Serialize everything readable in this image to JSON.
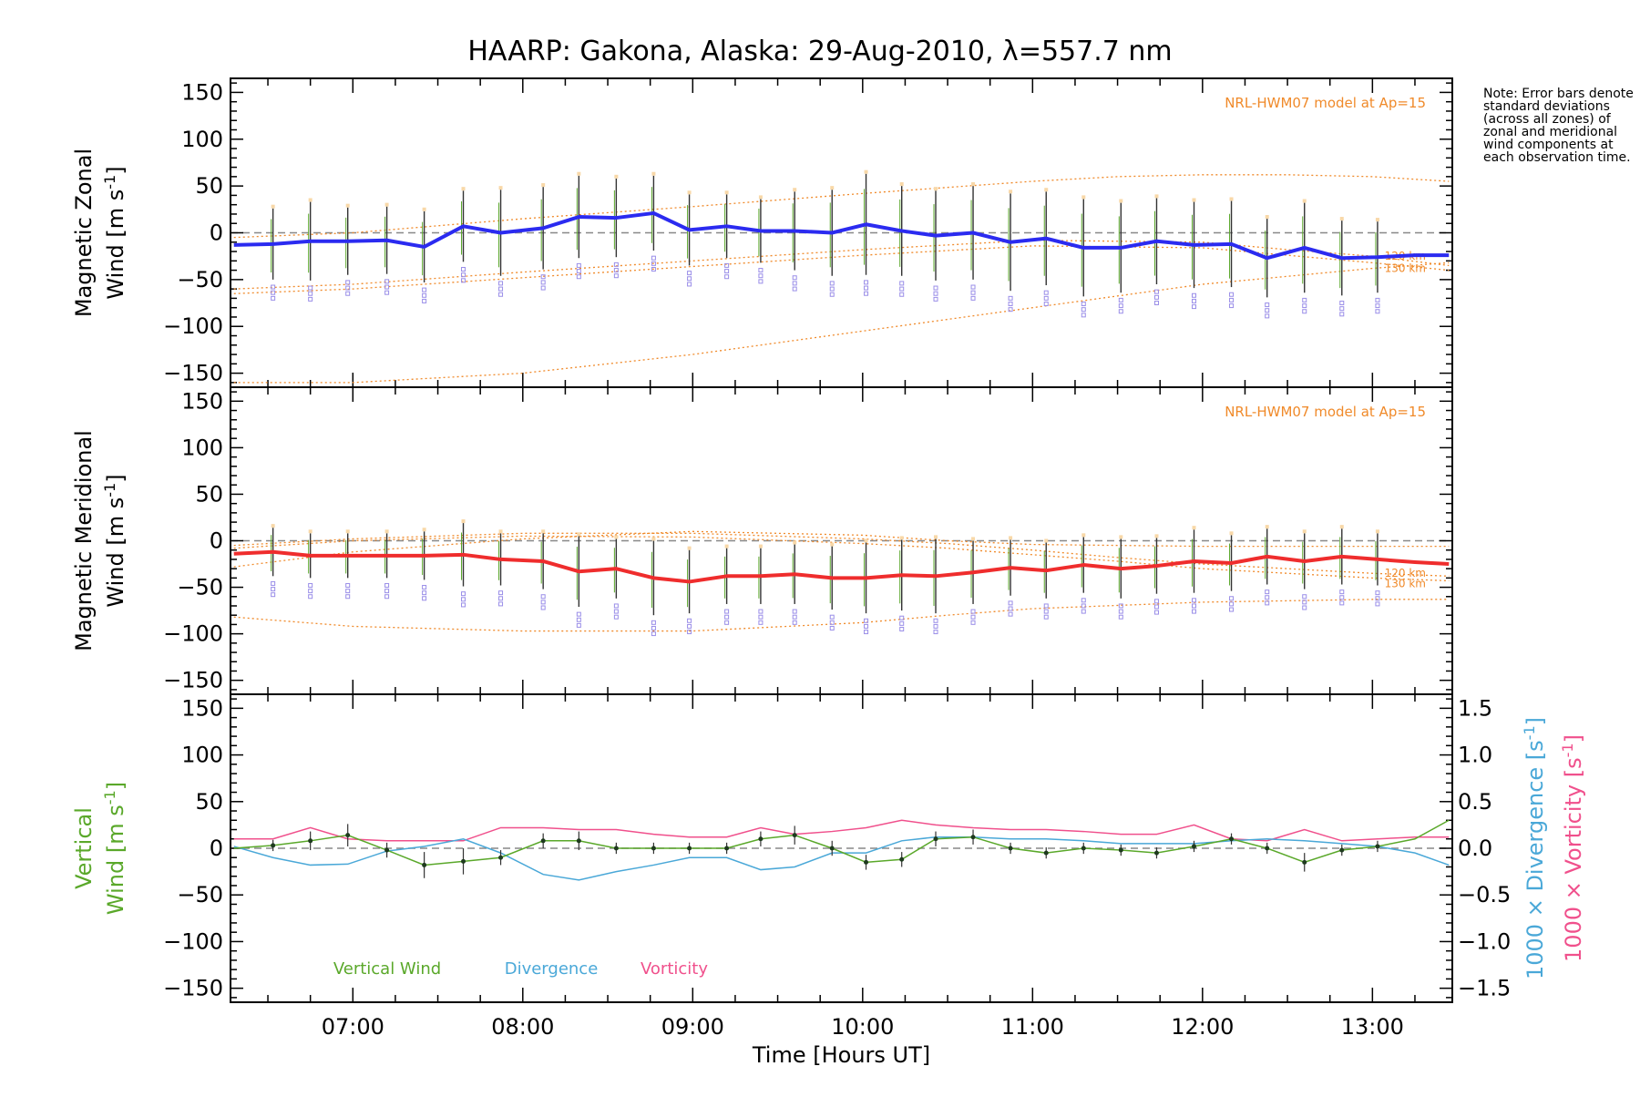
{
  "title": "HAARP: Gakona,  Alaska: 29-Aug-2010, λ=557.7 nm",
  "note": "Note: Error bars denote standard deviations (across all zones) of zonal and meridional wind components at each observation time.",
  "colors": {
    "zonal": "#2b2bf0",
    "meridional": "#ef2d2d",
    "model": "#f08a2a",
    "vertical": "#5aa82a",
    "divergence": "#4aa8d8",
    "vorticity": "#f0508c",
    "zero_line": "#888888",
    "zone_marker": "#9a8ee8",
    "error_bar": "#333333"
  },
  "chart_data": [
    {
      "type": "line",
      "panel": "zonal",
      "ylabel_line1": "Magnetic Zonal",
      "ylabel_line2": "Wind [m s",
      "ylabel_sup": "-1",
      "ylabel_close": "]",
      "ylim": [
        -165,
        165
      ],
      "yticks": [
        150,
        100,
        50,
        0,
        -50,
        -100,
        -150
      ],
      "ytick_labels": [
        "150",
        "100",
        "50",
        "0",
        "−50",
        "−100",
        "−150"
      ],
      "model_label": "NRL-HWM07 model at Ap=15",
      "model_lines": [
        {
          "name": "120 km",
          "x": [
            6.3,
            7.0,
            8.0,
            9.0,
            10.0,
            11.0,
            12.0,
            12.5,
            13.0,
            13.45
          ],
          "y": [
            -60,
            -55,
            -42,
            -30,
            -18,
            -8,
            -10,
            -18,
            -25,
            -35
          ]
        },
        {
          "name": "130 km",
          "x": [
            6.3,
            7.0,
            8.0,
            9.0,
            10.0,
            11.0,
            12.0,
            12.5,
            13.0,
            13.45
          ],
          "y": [
            -65,
            -60,
            -48,
            -36,
            -24,
            -14,
            -16,
            -24,
            -32,
            -40
          ]
        },
        {
          "name": "upper",
          "x": [
            6.3,
            7.0,
            8.0,
            9.0,
            10.0,
            11.0,
            11.5,
            12.0,
            12.5,
            13.0,
            13.45
          ],
          "y": [
            -5,
            0,
            15,
            28,
            42,
            55,
            60,
            62,
            62,
            60,
            55
          ]
        },
        {
          "name": "lower",
          "x": [
            6.3,
            7.0,
            8.0,
            9.0,
            10.0,
            11.0,
            12.0,
            13.0,
            13.45
          ],
          "y": [
            -160,
            -160,
            -150,
            -130,
            -105,
            -80,
            -55,
            -38,
            -32
          ]
        }
      ],
      "series": [
        {
          "name": "Magnetic Zonal Wind",
          "x": [
            6.3,
            6.53,
            6.75,
            6.97,
            7.2,
            7.42,
            7.65,
            7.87,
            8.12,
            8.33,
            8.55,
            8.77,
            8.98,
            9.2,
            9.4,
            9.6,
            9.82,
            10.02,
            10.23,
            10.43,
            10.65,
            10.87,
            11.08,
            11.3,
            11.52,
            11.73,
            11.95,
            12.17,
            12.38,
            12.6,
            12.82,
            13.03,
            13.25,
            13.45
          ],
          "y": [
            -13,
            -12,
            -9,
            -9,
            -8,
            -15,
            7,
            0,
            5,
            17,
            16,
            21,
            3,
            7,
            2,
            2,
            0,
            9,
            2,
            -3,
            0,
            -10,
            -6,
            -16,
            -16,
            -9,
            -13,
            -12,
            -27,
            -16,
            -27,
            -26,
            -24,
            -24
          ],
          "err": [
            0,
            38,
            42,
            36,
            36,
            38,
            38,
            46,
            44,
            44,
            42,
            40,
            38,
            34,
            34,
            42,
            46,
            54,
            48,
            48,
            50,
            52,
            50,
            52,
            48,
            46,
            46,
            46,
            42,
            48,
            40,
            38,
            0,
            0
          ]
        }
      ]
    },
    {
      "type": "line",
      "panel": "meridional",
      "ylabel_line1": "Magnetic Meridional",
      "ylabel_line2": "Wind [m s",
      "ylabel_sup": "-1",
      "ylabel_close": "]",
      "ylim": [
        -165,
        165
      ],
      "yticks": [
        150,
        100,
        50,
        0,
        -50,
        -100,
        -150
      ],
      "ytick_labels": [
        "150",
        "100",
        "50",
        "0",
        "−50",
        "−100",
        "−150"
      ],
      "model_label": "NRL-HWM07 model at Ap=15",
      "model_lines": [
        {
          "name": "120 km",
          "x": [
            6.3,
            7.0,
            8.0,
            9.0,
            10.0,
            10.5,
            11.0,
            11.5,
            12.0,
            12.5,
            13.0,
            13.45
          ],
          "y": [
            -5,
            2,
            8,
            8,
            2,
            -3,
            -10,
            -18,
            -25,
            -30,
            -35,
            -38
          ]
        },
        {
          "name": "130 km",
          "x": [
            6.3,
            7.0,
            8.0,
            9.0,
            10.0,
            10.5,
            11.0,
            11.5,
            12.0,
            12.5,
            13.0,
            13.45
          ],
          "y": [
            -8,
            0,
            5,
            4,
            -3,
            -8,
            -15,
            -22,
            -30,
            -35,
            -40,
            -43
          ]
        },
        {
          "name": "lower",
          "x": [
            6.3,
            7.0,
            8.0,
            9.0,
            10.0,
            10.5,
            11.0,
            12.0,
            13.0,
            13.45
          ],
          "y": [
            -82,
            -92,
            -97,
            -97,
            -88,
            -80,
            -73,
            -66,
            -63,
            -63
          ]
        },
        {
          "name": "upper",
          "x": [
            6.3,
            7.0,
            8.0,
            9.0,
            10.0,
            10.5,
            11.0,
            12.0,
            13.0,
            13.45
          ],
          "y": [
            -28,
            -12,
            2,
            10,
            6,
            0,
            -4,
            -6,
            -6,
            -6
          ]
        }
      ],
      "series": [
        {
          "name": "Magnetic Meridional Wind",
          "x": [
            6.3,
            6.53,
            6.75,
            6.97,
            7.2,
            7.42,
            7.65,
            7.87,
            8.12,
            8.33,
            8.55,
            8.77,
            8.98,
            9.2,
            9.4,
            9.6,
            9.82,
            10.02,
            10.23,
            10.43,
            10.65,
            10.87,
            11.08,
            11.3,
            11.52,
            11.73,
            11.95,
            12.17,
            12.38,
            12.6,
            12.82,
            13.03,
            13.25,
            13.45
          ],
          "y": [
            -14,
            -12,
            -16,
            -16,
            -16,
            -16,
            -15,
            -20,
            -22,
            -33,
            -30,
            -40,
            -44,
            -38,
            -38,
            -36,
            -40,
            -40,
            -37,
            -38,
            -34,
            -29,
            -32,
            -26,
            -30,
            -27,
            -22,
            -24,
            -17,
            -22,
            -17,
            -20,
            -23,
            -25
          ],
          "err": [
            0,
            26,
            24,
            24,
            24,
            26,
            34,
            28,
            30,
            38,
            32,
            40,
            34,
            30,
            30,
            32,
            34,
            38,
            38,
            40,
            34,
            30,
            30,
            30,
            32,
            30,
            34,
            30,
            30,
            30,
            30,
            28,
            0,
            0
          ]
        }
      ]
    },
    {
      "type": "line",
      "panel": "vertical",
      "ylabel_line1": "Vertical",
      "ylabel_line2": "Wind [m s",
      "ylabel_sup": "-1",
      "ylabel_close": "]",
      "ylim": [
        -165,
        165
      ],
      "yticks": [
        150,
        100,
        50,
        0,
        -50,
        -100,
        -150
      ],
      "ytick_labels": [
        "150",
        "100",
        "50",
        "0",
        "−50",
        "−100",
        "−150"
      ],
      "y2lim": [
        -1.65,
        1.65
      ],
      "y2ticks": [
        1.5,
        1.0,
        0.5,
        0.0,
        -0.5,
        -1.0,
        -1.5
      ],
      "y2tick_labels": [
        "1.5",
        "1.0",
        "0.5",
        "0.0",
        "−0.5",
        "−1.0",
        "−1.5"
      ],
      "y2label_div": "1000 × Divergence [s",
      "y2label_vort": "1000 × Vorticity [s",
      "y2label_sup": "-1",
      "y2label_close": "]",
      "legend": [
        "Vertical Wind",
        "Divergence",
        "Vorticity"
      ],
      "series": [
        {
          "name": "Vertical Wind",
          "x": [
            6.3,
            6.53,
            6.75,
            6.97,
            7.2,
            7.42,
            7.65,
            7.87,
            8.12,
            8.33,
            8.55,
            8.77,
            8.98,
            9.2,
            9.4,
            9.6,
            9.82,
            10.02,
            10.23,
            10.43,
            10.65,
            10.87,
            11.08,
            11.3,
            11.52,
            11.73,
            11.95,
            12.17,
            12.38,
            12.6,
            12.82,
            13.03,
            13.25,
            13.45
          ],
          "y": [
            0,
            3,
            8,
            14,
            -2,
            -18,
            -14,
            -10,
            8,
            8,
            0,
            0,
            0,
            0,
            10,
            14,
            0,
            -15,
            -12,
            10,
            12,
            0,
            -5,
            0,
            -2,
            -5,
            2,
            10,
            0,
            -15,
            -2,
            2,
            10,
            30
          ],
          "err": [
            0,
            6,
            10,
            12,
            8,
            14,
            14,
            8,
            8,
            10,
            6,
            6,
            6,
            6,
            8,
            10,
            8,
            8,
            8,
            8,
            8,
            6,
            6,
            6,
            6,
            6,
            6,
            6,
            6,
            10,
            6,
            6,
            0,
            0
          ]
        },
        {
          "name": "Divergence",
          "x": [
            6.3,
            6.53,
            6.75,
            6.97,
            7.2,
            7.42,
            7.65,
            7.87,
            8.12,
            8.33,
            8.55,
            8.77,
            8.98,
            9.2,
            9.4,
            9.6,
            9.82,
            10.02,
            10.23,
            10.43,
            10.65,
            10.87,
            11.08,
            11.3,
            11.52,
            11.73,
            11.95,
            12.17,
            12.38,
            12.6,
            12.82,
            13.03,
            13.25,
            13.45
          ],
          "y": [
            0.02,
            -0.1,
            -0.18,
            -0.17,
            -0.03,
            0.02,
            0.1,
            -0.05,
            -0.28,
            -0.34,
            -0.25,
            -0.18,
            -0.1,
            -0.1,
            -0.23,
            -0.2,
            -0.05,
            -0.05,
            0.08,
            0.12,
            0.12,
            0.1,
            0.1,
            0.08,
            0.05,
            0.05,
            0.05,
            0.08,
            0.1,
            0.08,
            0.05,
            0.02,
            -0.05,
            -0.18
          ]
        },
        {
          "name": "Vorticity",
          "x": [
            6.3,
            6.53,
            6.75,
            6.97,
            7.2,
            7.42,
            7.65,
            7.87,
            8.12,
            8.33,
            8.55,
            8.77,
            8.98,
            9.2,
            9.4,
            9.6,
            9.82,
            10.02,
            10.23,
            10.43,
            10.65,
            10.87,
            11.08,
            11.3,
            11.52,
            11.73,
            11.95,
            12.17,
            12.38,
            12.6,
            12.82,
            13.03,
            13.25,
            13.45
          ],
          "y": [
            0.1,
            0.1,
            0.22,
            0.1,
            0.08,
            0.08,
            0.08,
            0.22,
            0.22,
            0.2,
            0.2,
            0.15,
            0.12,
            0.12,
            0.22,
            0.15,
            0.18,
            0.22,
            0.3,
            0.25,
            0.22,
            0.2,
            0.2,
            0.18,
            0.15,
            0.15,
            0.25,
            0.1,
            0.08,
            0.2,
            0.08,
            0.1,
            0.12,
            0.12
          ]
        }
      ]
    }
  ],
  "xaxis": {
    "xlim": [
      6.28,
      13.47
    ],
    "ticks": [
      7,
      8,
      9,
      10,
      11,
      12,
      13
    ],
    "tick_labels": [
      "07:00",
      "08:00",
      "09:00",
      "10:00",
      "11:00",
      "12:00",
      "13:00"
    ],
    "label": "Time [Hours UT]"
  }
}
